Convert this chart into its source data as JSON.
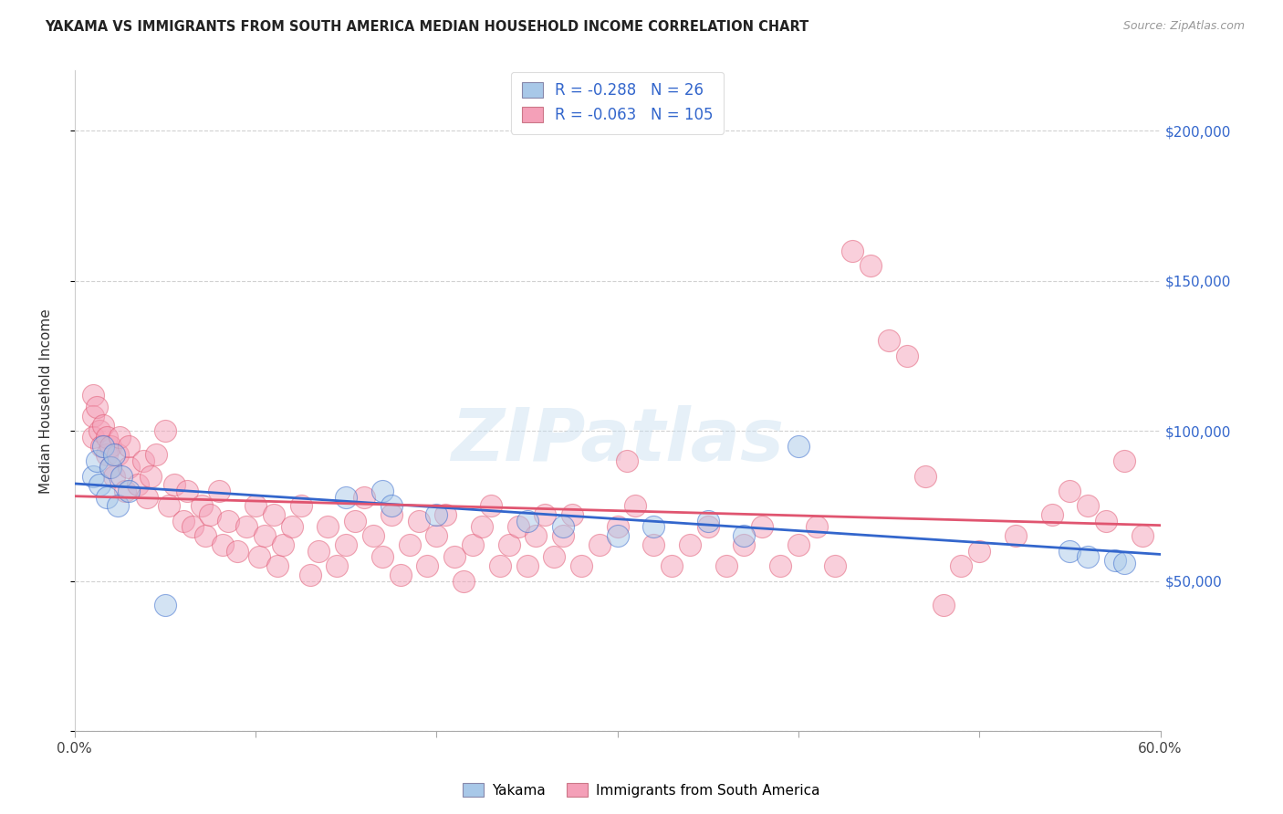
{
  "title": "YAKAMA VS IMMIGRANTS FROM SOUTH AMERICA MEDIAN HOUSEHOLD INCOME CORRELATION CHART",
  "source": "Source: ZipAtlas.com",
  "ylabel": "Median Household Income",
  "xlim": [
    0.0,
    0.6
  ],
  "ylim": [
    0,
    220000
  ],
  "yticks": [
    0,
    50000,
    100000,
    150000,
    200000
  ],
  "xticks": [
    0.0,
    0.1,
    0.2,
    0.3,
    0.4,
    0.5,
    0.6
  ],
  "ytick_labels_right": [
    "",
    "$50,000",
    "$100,000",
    "$150,000",
    "$200,000"
  ],
  "blue_R": -0.288,
  "blue_N": 26,
  "pink_R": -0.063,
  "pink_N": 105,
  "blue_color": "#a8c8e8",
  "pink_color": "#f4a0b8",
  "blue_line_color": "#3366cc",
  "pink_line_color": "#e05570",
  "blue_scatter_x": [
    0.01,
    0.012,
    0.014,
    0.016,
    0.018,
    0.02,
    0.022,
    0.024,
    0.026,
    0.03,
    0.05,
    0.15,
    0.17,
    0.175,
    0.2,
    0.25,
    0.27,
    0.3,
    0.32,
    0.35,
    0.37,
    0.4,
    0.55,
    0.56,
    0.575,
    0.58
  ],
  "blue_scatter_y": [
    85000,
    90000,
    82000,
    95000,
    78000,
    88000,
    92000,
    75000,
    85000,
    80000,
    42000,
    78000,
    80000,
    75000,
    72000,
    70000,
    68000,
    65000,
    68000,
    70000,
    65000,
    95000,
    60000,
    58000,
    57000,
    56000
  ],
  "pink_scatter_x": [
    0.01,
    0.01,
    0.01,
    0.012,
    0.014,
    0.015,
    0.016,
    0.018,
    0.018,
    0.02,
    0.02,
    0.022,
    0.024,
    0.025,
    0.028,
    0.03,
    0.03,
    0.035,
    0.038,
    0.04,
    0.042,
    0.045,
    0.05,
    0.052,
    0.055,
    0.06,
    0.062,
    0.065,
    0.07,
    0.072,
    0.075,
    0.08,
    0.082,
    0.085,
    0.09,
    0.095,
    0.1,
    0.102,
    0.105,
    0.11,
    0.112,
    0.115,
    0.12,
    0.125,
    0.13,
    0.135,
    0.14,
    0.145,
    0.15,
    0.155,
    0.16,
    0.165,
    0.17,
    0.175,
    0.18,
    0.185,
    0.19,
    0.195,
    0.2,
    0.205,
    0.21,
    0.215,
    0.22,
    0.225,
    0.23,
    0.235,
    0.24,
    0.245,
    0.25,
    0.255,
    0.26,
    0.265,
    0.27,
    0.275,
    0.28,
    0.29,
    0.3,
    0.305,
    0.31,
    0.32,
    0.33,
    0.34,
    0.35,
    0.36,
    0.37,
    0.38,
    0.39,
    0.4,
    0.41,
    0.42,
    0.43,
    0.44,
    0.45,
    0.46,
    0.47,
    0.48,
    0.49,
    0.5,
    0.52,
    0.54,
    0.55,
    0.56,
    0.57,
    0.58,
    0.59
  ],
  "pink_scatter_y": [
    112000,
    105000,
    98000,
    108000,
    100000,
    95000,
    102000,
    92000,
    98000,
    88000,
    95000,
    85000,
    92000,
    98000,
    80000,
    88000,
    95000,
    82000,
    90000,
    78000,
    85000,
    92000,
    100000,
    75000,
    82000,
    70000,
    80000,
    68000,
    75000,
    65000,
    72000,
    80000,
    62000,
    70000,
    60000,
    68000,
    75000,
    58000,
    65000,
    72000,
    55000,
    62000,
    68000,
    75000,
    52000,
    60000,
    68000,
    55000,
    62000,
    70000,
    78000,
    65000,
    58000,
    72000,
    52000,
    62000,
    70000,
    55000,
    65000,
    72000,
    58000,
    50000,
    62000,
    68000,
    75000,
    55000,
    62000,
    68000,
    55000,
    65000,
    72000,
    58000,
    65000,
    72000,
    55000,
    62000,
    68000,
    90000,
    75000,
    62000,
    55000,
    62000,
    68000,
    55000,
    62000,
    68000,
    55000,
    62000,
    68000,
    55000,
    160000,
    155000,
    130000,
    125000,
    85000,
    42000,
    55000,
    60000,
    65000,
    72000,
    80000,
    75000,
    70000,
    90000,
    65000
  ],
  "watermark_text": "ZIPatlas",
  "legend_label_blue": "Yakama",
  "legend_label_pink": "Immigrants from South America"
}
